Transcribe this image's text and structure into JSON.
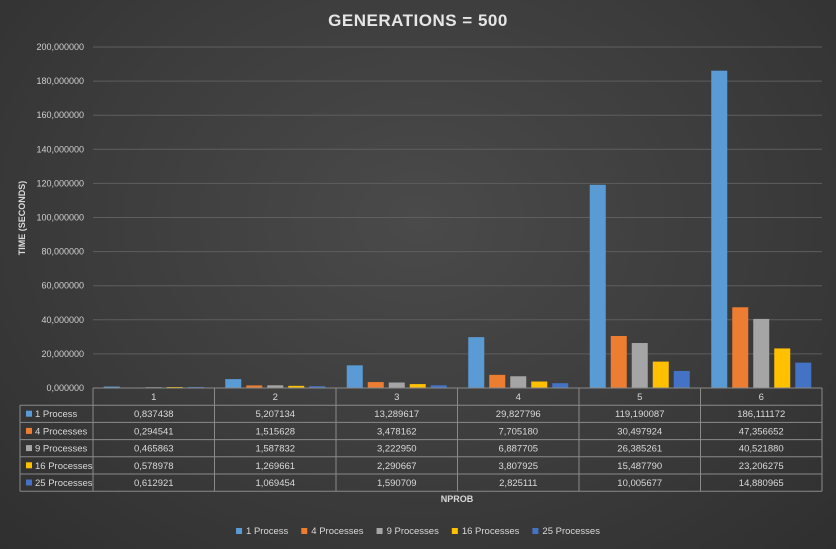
{
  "chart_data": {
    "type": "bar",
    "title": "GENERATIONS = 500",
    "xlabel": "NPROB",
    "ylabel": "TIME (SECONDS)",
    "ylim": [
      0,
      200
    ],
    "y_ticks": [
      "0,000000",
      "20,000000",
      "40,000000",
      "60,000000",
      "80,000000",
      "100,000000",
      "120,000000",
      "140,000000",
      "160,000000",
      "180,000000",
      "200,000000"
    ],
    "categories": [
      "1",
      "2",
      "3",
      "4",
      "5",
      "6"
    ],
    "series": [
      {
        "name": "1 Process",
        "color": "#5b9bd5",
        "values": [
          0.837438,
          5.207134,
          13.289617,
          29.827796,
          119.190087,
          186.111172
        ],
        "labels": [
          "0,837438",
          "5,207134",
          "13,289617",
          "29,827796",
          "119,190087",
          "186,111172"
        ]
      },
      {
        "name": "4 Processes",
        "color": "#ed7d31",
        "values": [
          0.294541,
          1.515628,
          3.478162,
          7.70518,
          30.497924,
          47.356652
        ],
        "labels": [
          "0,294541",
          "1,515628",
          "3,478162",
          "7,705180",
          "30,497924",
          "47,356652"
        ]
      },
      {
        "name": "9 Processes",
        "color": "#a5a5a5",
        "values": [
          0.465863,
          1.587832,
          3.22295,
          6.887705,
          26.385261,
          40.52188
        ],
        "labels": [
          "0,465863",
          "1,587832",
          "3,222950",
          "6,887705",
          "26,385261",
          "40,521880"
        ]
      },
      {
        "name": "16 Processes",
        "color": "#ffc000",
        "values": [
          0.578978,
          1.269661,
          2.290667,
          3.807925,
          15.48779,
          23.206275
        ],
        "labels": [
          "0,578978",
          "1,269661",
          "2,290667",
          "3,807925",
          "15,487790",
          "23,206275"
        ]
      },
      {
        "name": "25 Processes",
        "color": "#4472c4",
        "values": [
          0.612921,
          1.069454,
          1.590709,
          2.825111,
          10.005677,
          14.880965
        ],
        "labels": [
          "0,612921",
          "1,069454",
          "1,590709",
          "2,825111",
          "10,005677",
          "14,880965"
        ]
      }
    ],
    "grid": true,
    "legend": "bottom-center",
    "data_table": true
  }
}
